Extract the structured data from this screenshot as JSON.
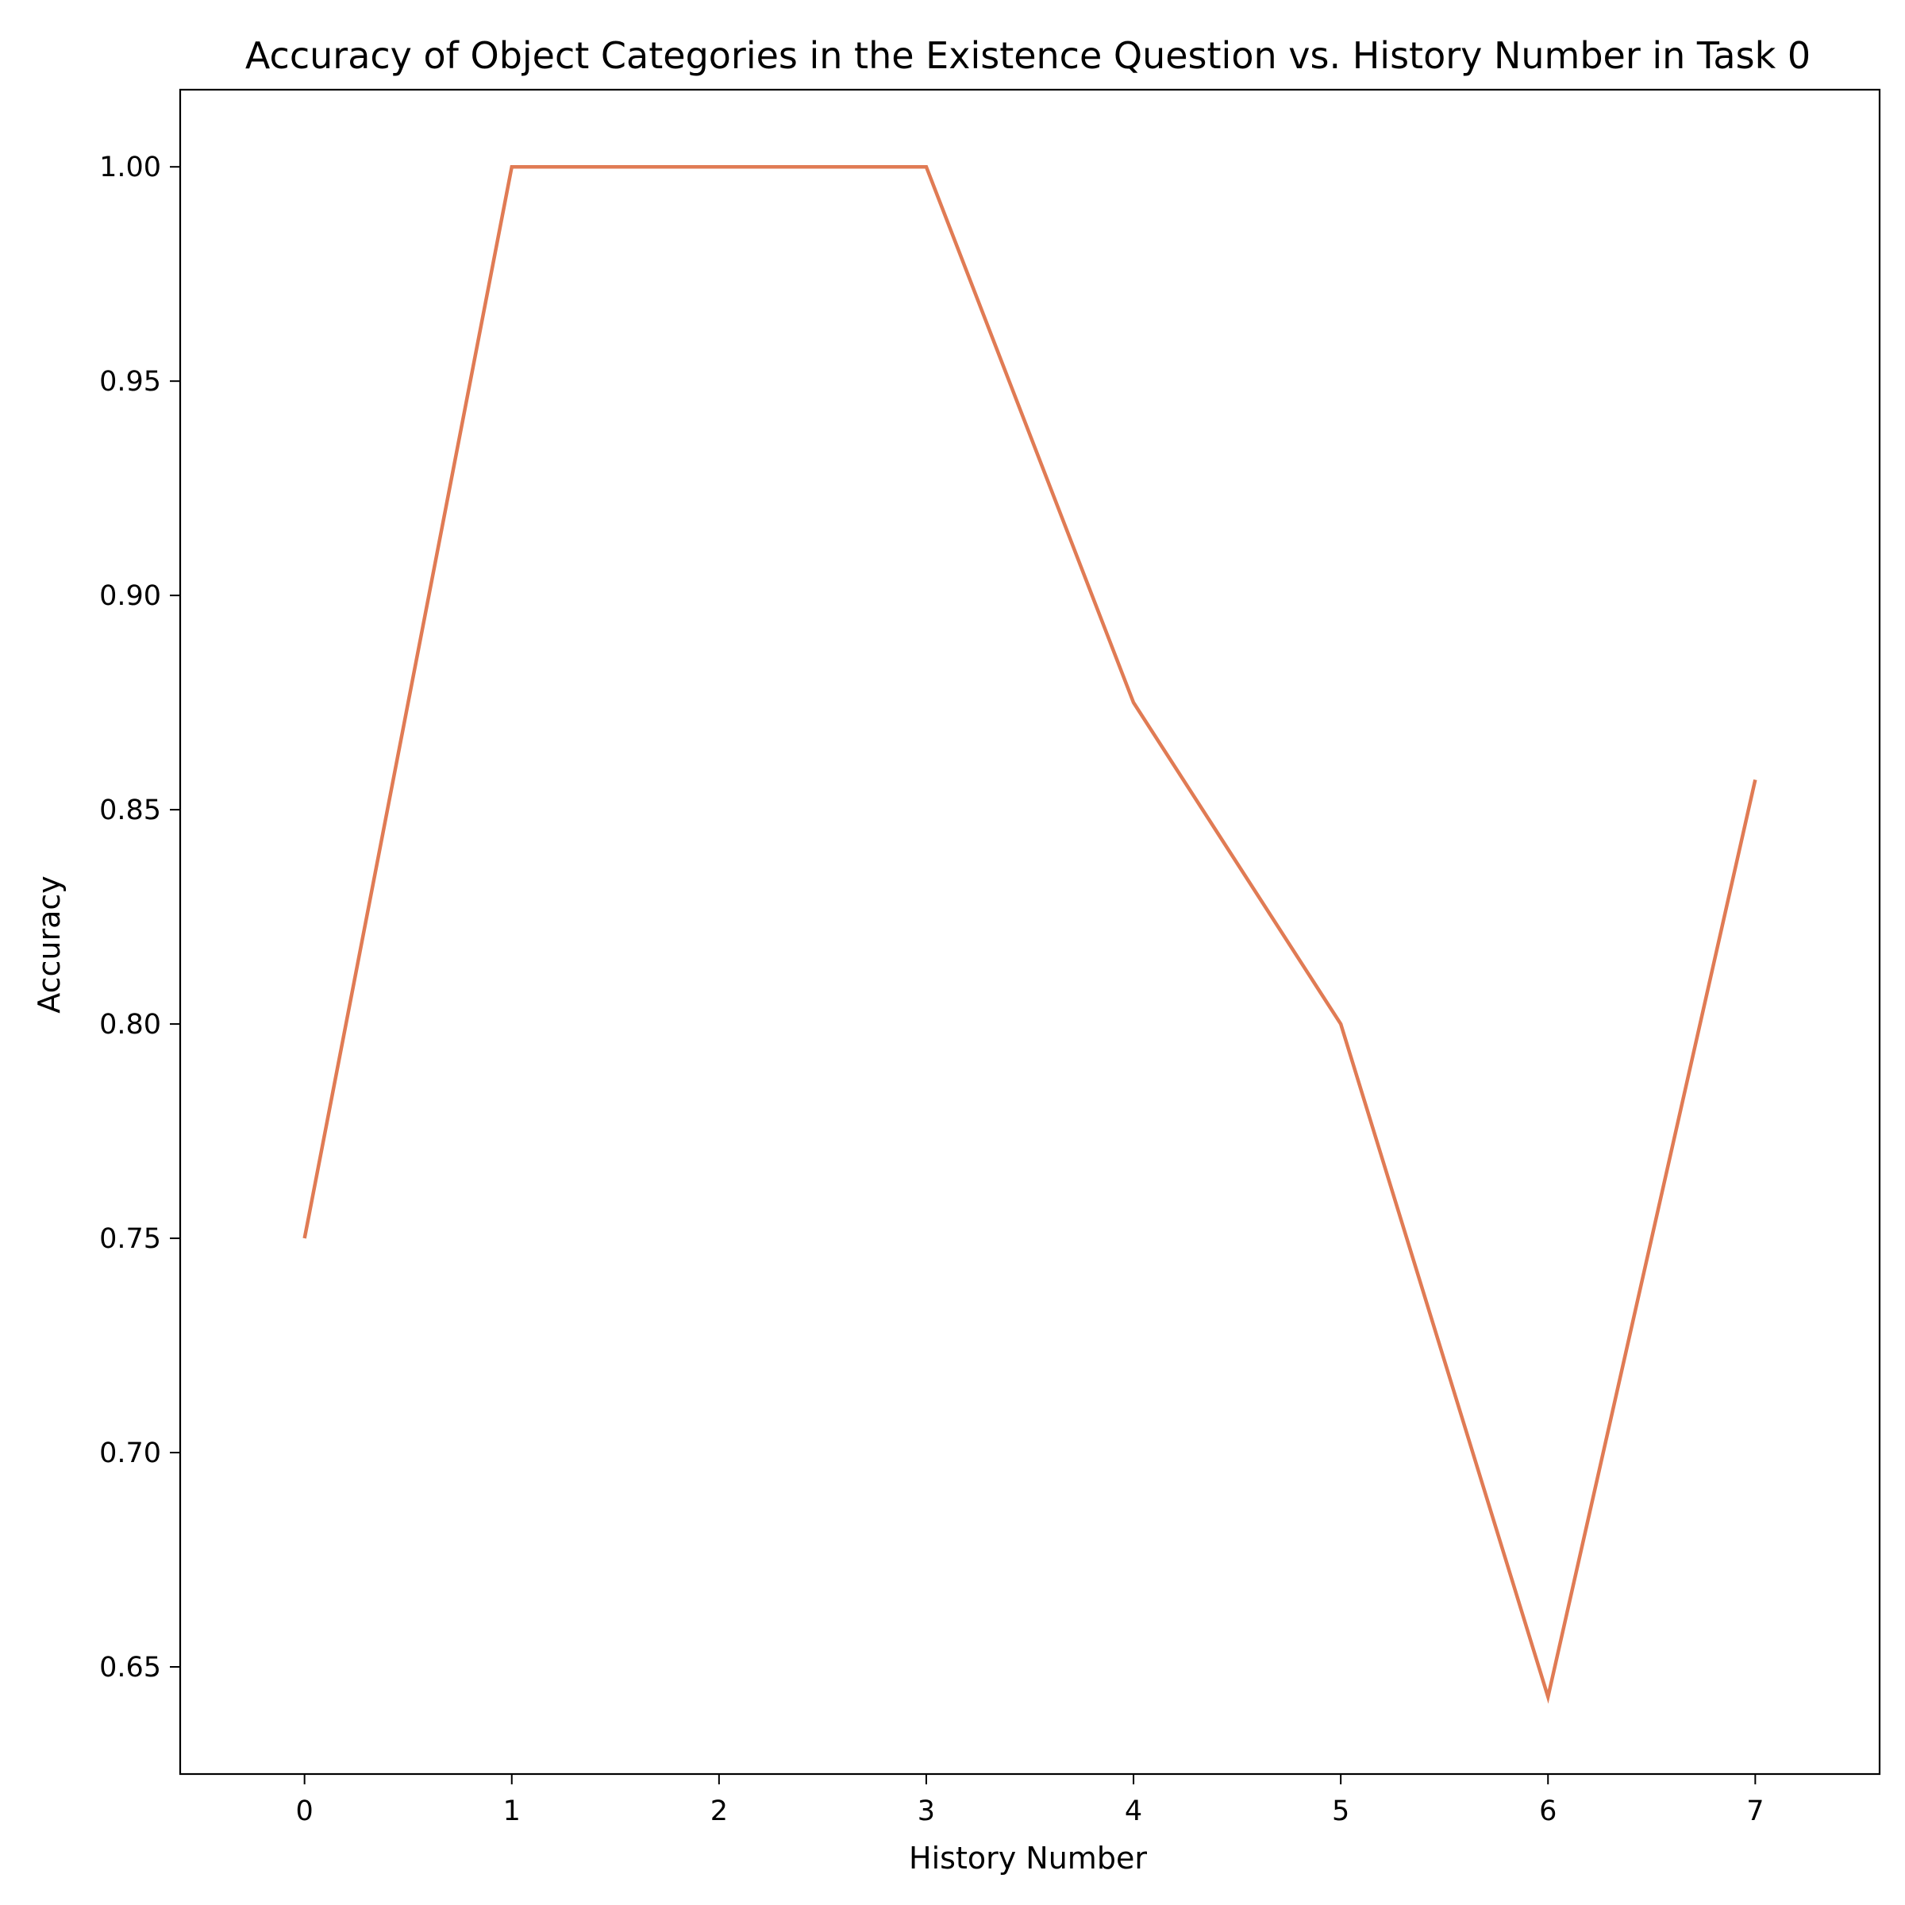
{
  "chart_data": {
    "type": "line",
    "title": "Accuracy of Object Categories in the Existence Question vs. History Number in Task 0",
    "xlabel": "History Number",
    "ylabel": "Accuracy",
    "x": [
      0,
      1,
      2,
      3,
      4,
      5,
      6,
      7
    ],
    "xticks": [
      "0",
      "1",
      "2",
      "3",
      "4",
      "5",
      "6",
      "7"
    ],
    "xlim": [
      -0.6,
      7.6
    ],
    "yticks": [
      "0.65",
      "0.70",
      "0.75",
      "0.80",
      "0.85",
      "0.90",
      "0.95",
      "1.00"
    ],
    "ylim": [
      0.625,
      1.018
    ],
    "grid": false,
    "series": [
      {
        "values": [
          0.75,
          1.0,
          1.0,
          1.0,
          0.875,
          0.8,
          0.643,
          0.857
        ],
        "color": "#e07b54"
      }
    ]
  }
}
